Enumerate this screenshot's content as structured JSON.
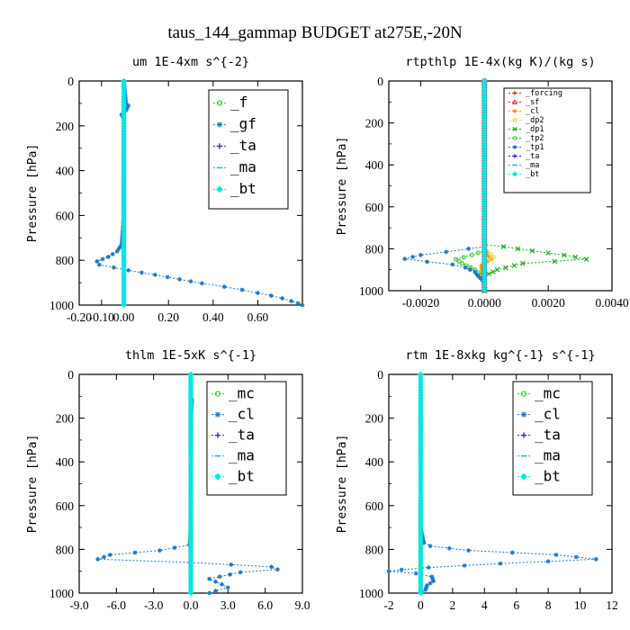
{
  "figure_title": "taus_144_gammap  BUDGET at275E,-20N",
  "chart_data": [
    {
      "type": "line",
      "title": "um    1E-4xm s^{-2}",
      "xlabel": "",
      "ylabel": "Pressure [hPa]",
      "xlim": [
        -0.2,
        0.8
      ],
      "ylim": [
        1000,
        0
      ],
      "xticks": [
        "-0.20",
        "-0.10",
        "0.00",
        "0.20",
        "0.40",
        "0.60"
      ],
      "xtick_values": [
        -0.2,
        -0.1,
        0.0,
        0.2,
        0.4,
        0.6
      ],
      "yticks": [
        "0",
        "200",
        "400",
        "600",
        "800",
        "1000"
      ],
      "ytick_values": [
        0,
        200,
        400,
        600,
        800,
        1000
      ],
      "legend_position": "top-right",
      "series": [
        {
          "name": "_f",
          "color": "#22cc22",
          "marker": "circle",
          "points": [
            [
              0,
              0
            ],
            [
              0,
              200
            ],
            [
              0,
              400
            ],
            [
              0,
              600
            ],
            [
              0,
              800
            ],
            [
              0,
              1000
            ]
          ]
        },
        {
          "name": "_gf",
          "color": "#1e78c8",
          "marker": "star",
          "points": [
            [
              0,
              0
            ],
            [
              0.01,
              100
            ],
            [
              0.02,
              110
            ],
            [
              0.01,
              130
            ],
            [
              -0.01,
              150
            ],
            [
              0,
              170
            ],
            [
              0,
              200
            ],
            [
              0,
              400
            ],
            [
              0,
              600
            ],
            [
              -0.01,
              730
            ],
            [
              -0.03,
              760
            ],
            [
              -0.07,
              785
            ],
            [
              -0.12,
              805
            ],
            [
              -0.11,
              820
            ],
            [
              0.02,
              845
            ],
            [
              0.14,
              865
            ],
            [
              0.25,
              885
            ],
            [
              0.35,
              903
            ],
            [
              0.45,
              918
            ],
            [
              0.53,
              932
            ],
            [
              0.6,
              946
            ],
            [
              0.66,
              958
            ],
            [
              0.71,
              970
            ],
            [
              0.75,
              982
            ],
            [
              0.78,
              992
            ],
            [
              0.8,
              1000
            ]
          ]
        },
        {
          "name": "_ta",
          "color": "#2222dd",
          "marker": "plus",
          "points": [
            [
              0,
              0
            ],
            [
              0,
              500
            ],
            [
              0,
              1000
            ]
          ]
        },
        {
          "name": "_ma",
          "color": "#2ab0c8",
          "marker": "dash",
          "points": [
            [
              0,
              0
            ],
            [
              0,
              500
            ],
            [
              0,
              1000
            ]
          ]
        },
        {
          "name": "_bt",
          "color": "#00e8e8",
          "marker": "diamond",
          "points": [
            [
              0,
              0
            ],
            [
              0,
              500
            ],
            [
              0,
              1000
            ]
          ]
        }
      ]
    },
    {
      "type": "line",
      "title": "rtpthlp   1E-4x(kg K)/(kg s)",
      "xlabel": "",
      "ylabel": "Pressure [hPa]",
      "xlim": [
        -0.003,
        0.004
      ],
      "ylim": [
        1000,
        0
      ],
      "xticks": [
        "-0.0020",
        "0.0000",
        "0.0020",
        "0.0040"
      ],
      "xtick_values": [
        -0.002,
        0.0,
        0.002,
        0.004
      ],
      "yticks": [
        "0",
        "200",
        "400",
        "600",
        "800",
        "1000"
      ],
      "ytick_values": [
        0,
        200,
        400,
        600,
        800,
        1000
      ],
      "legend_position": "top-right",
      "series": [
        {
          "name": "_forcing",
          "color": "#dd2222",
          "marker": "plus",
          "points": [
            [
              0,
              0
            ],
            [
              0,
              200
            ],
            [
              0,
              400
            ],
            [
              0,
              600
            ],
            [
              0,
              800
            ],
            [
              0,
              1000
            ]
          ]
        },
        {
          "name": "_sf",
          "color": "#dd2222",
          "marker": "tri",
          "points": [
            [
              0,
              0
            ],
            [
              0,
              1000
            ]
          ]
        },
        {
          "name": "_cl",
          "color": "#ff9900",
          "marker": "star",
          "points": [
            [
              0,
              0
            ],
            [
              0,
              800
            ],
            [
              0.0002,
              850
            ],
            [
              -0.0001,
              880
            ],
            [
              0,
              1000
            ]
          ]
        },
        {
          "name": "_dp2",
          "color": "#ffcc55",
          "marker": "circle",
          "points": [
            [
              0,
              0
            ],
            [
              0,
              800
            ],
            [
              0.0003,
              840
            ],
            [
              0,
              870
            ],
            [
              0,
              1000
            ]
          ]
        },
        {
          "name": "_dp1",
          "color": "#22aa22",
          "marker": "x",
          "points": [
            [
              0,
              0
            ],
            [
              0,
              780
            ],
            [
              0.0006,
              790
            ],
            [
              0.0015,
              810
            ],
            [
              0.0025,
              830
            ],
            [
              0.0032,
              850
            ],
            [
              0.0022,
              860
            ],
            [
              0.0012,
              870
            ],
            [
              0.0004,
              900
            ],
            [
              0,
              930
            ],
            [
              0,
              1000
            ]
          ]
        },
        {
          "name": "_tp2",
          "color": "#33cc33",
          "marker": "circle",
          "points": [
            [
              0,
              0
            ],
            [
              0,
              810
            ],
            [
              -0.0004,
              830
            ],
            [
              -0.0009,
              850
            ],
            [
              -0.0007,
              870
            ],
            [
              -0.0003,
              900
            ],
            [
              0,
              940
            ],
            [
              0,
              1000
            ]
          ]
        },
        {
          "name": "_tp1",
          "color": "#1e78c8",
          "marker": "star",
          "points": [
            [
              0,
              0
            ],
            [
              0,
              790
            ],
            [
              -0.0005,
              800
            ],
            [
              -0.0012,
              815
            ],
            [
              -0.002,
              830
            ],
            [
              -0.0025,
              848
            ],
            [
              -0.0018,
              862
            ],
            [
              -0.001,
              875
            ],
            [
              -0.0006,
              890
            ],
            [
              -0.0003,
              910
            ],
            [
              -0.0002,
              930
            ],
            [
              0,
              960
            ],
            [
              0,
              1000
            ]
          ]
        },
        {
          "name": "_ta",
          "color": "#2222dd",
          "marker": "plus",
          "points": [
            [
              0,
              0
            ],
            [
              0,
              1000
            ]
          ]
        },
        {
          "name": "_ma",
          "color": "#2ab0c8",
          "marker": "dash",
          "points": [
            [
              0,
              0
            ],
            [
              0,
              1000
            ]
          ]
        },
        {
          "name": "_bt",
          "color": "#00e8e8",
          "marker": "diamond",
          "points": [
            [
              0,
              0
            ],
            [
              0,
              1000
            ]
          ]
        }
      ]
    },
    {
      "type": "line",
      "title": "thlm   1E-5xK s^{-1}",
      "xlabel": "",
      "ylabel": "Pressure [hPa]",
      "xlim": [
        -9,
        9
      ],
      "ylim": [
        1000,
        0
      ],
      "xticks": [
        "-9.0",
        "-6.0",
        "-3.0",
        "0.0",
        "3.0",
        "6.0",
        "9.0"
      ],
      "xtick_values": [
        -9,
        -6,
        -3,
        0,
        3,
        6,
        9
      ],
      "yticks": [
        "0",
        "200",
        "400",
        "600",
        "800",
        "1000"
      ],
      "ytick_values": [
        0,
        200,
        400,
        600,
        800,
        1000
      ],
      "legend_position": "top-right",
      "series": [
        {
          "name": "_mc",
          "color": "#22cc22",
          "marker": "circle",
          "points": [
            [
              0,
              0
            ],
            [
              0,
              200
            ],
            [
              0,
              400
            ],
            [
              0,
              600
            ],
            [
              0,
              800
            ],
            [
              0,
              1000
            ]
          ]
        },
        {
          "name": "_cl",
          "color": "#1e78c8",
          "marker": "star",
          "points": [
            [
              0,
              0
            ],
            [
              0,
              100
            ],
            [
              0.1,
              120
            ],
            [
              0,
              200
            ],
            [
              0,
              400
            ],
            [
              0,
              600
            ],
            [
              0,
              700
            ],
            [
              -0.1,
              780
            ],
            [
              -2.5,
              805
            ],
            [
              -6.5,
              825
            ],
            [
              -7.5,
              845
            ],
            [
              0,
              860
            ],
            [
              6.5,
              880
            ],
            [
              7,
              892
            ],
            [
              4,
              905
            ],
            [
              1.5,
              935
            ],
            [
              2.5,
              960
            ],
            [
              3,
              975
            ],
            [
              2,
              990
            ],
            [
              1.5,
              1000
            ]
          ]
        },
        {
          "name": "_ta",
          "color": "#2222dd",
          "marker": "plus",
          "points": [
            [
              0,
              0
            ],
            [
              0,
              1000
            ]
          ]
        },
        {
          "name": "_ma",
          "color": "#2ab0c8",
          "marker": "dash",
          "points": [
            [
              0,
              0
            ],
            [
              0,
              1000
            ]
          ]
        },
        {
          "name": "_bt",
          "color": "#00e8e8",
          "marker": "diamond",
          "points": [
            [
              0,
              0
            ],
            [
              0,
              1000
            ]
          ]
        }
      ]
    },
    {
      "type": "line",
      "title": "rtm   1E-8xkg kg^{-1} s^{-1}",
      "xlabel": "",
      "ylabel": "Pressure [hPa]",
      "xlim": [
        -2,
        12
      ],
      "ylim": [
        1000,
        0
      ],
      "xticks": [
        "-2",
        "0",
        "2",
        "4",
        "6",
        "8",
        "10",
        "12"
      ],
      "xtick_values": [
        -2,
        0,
        2,
        4,
        6,
        8,
        10,
        12
      ],
      "yticks": [
        "0",
        "200",
        "400",
        "600",
        "800",
        "1000"
      ],
      "ytick_values": [
        0,
        200,
        400,
        600,
        800,
        1000
      ],
      "legend_position": "top-right",
      "series": [
        {
          "name": "_mc",
          "color": "#22cc22",
          "marker": "circle",
          "points": [
            [
              0,
              0
            ],
            [
              0,
              200
            ],
            [
              0,
              400
            ],
            [
              0,
              600
            ],
            [
              0,
              800
            ],
            [
              0,
              1000
            ]
          ]
        },
        {
          "name": "_cl",
          "color": "#1e78c8",
          "marker": "star",
          "points": [
            [
              0,
              0
            ],
            [
              0,
              700
            ],
            [
              0.2,
              770
            ],
            [
              0.6,
              785
            ],
            [
              3,
              805
            ],
            [
              8.5,
              825
            ],
            [
              11,
              845
            ],
            [
              5,
              865
            ],
            [
              0.5,
              883
            ],
            [
              -1.2,
              893
            ],
            [
              -2,
              900
            ],
            [
              -0.3,
              910
            ],
            [
              0.7,
              925
            ],
            [
              0.8,
              945
            ],
            [
              0.4,
              965
            ],
            [
              0.3,
              985
            ],
            [
              0,
              1000
            ]
          ]
        },
        {
          "name": "_ta",
          "color": "#2222dd",
          "marker": "plus",
          "points": [
            [
              0,
              0
            ],
            [
              0,
              1000
            ]
          ]
        },
        {
          "name": "_ma",
          "color": "#2ab0c8",
          "marker": "dash",
          "points": [
            [
              0,
              0
            ],
            [
              0,
              1000
            ]
          ]
        },
        {
          "name": "_bt",
          "color": "#00e8e8",
          "marker": "diamond",
          "points": [
            [
              0,
              0
            ],
            [
              0,
              1000
            ]
          ]
        }
      ]
    }
  ]
}
